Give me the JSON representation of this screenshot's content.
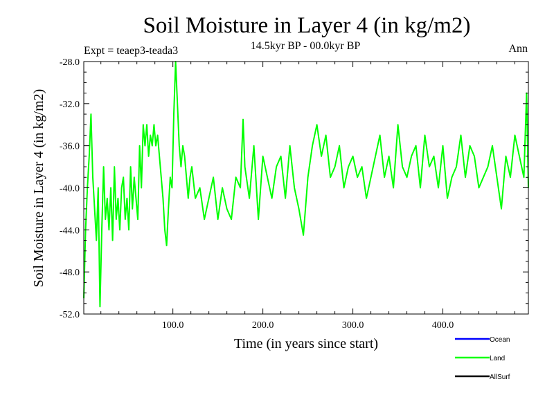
{
  "chart_data": {
    "type": "line",
    "title": "Soil Moisture in Layer 4 (in kg/m2)",
    "subtitle": "14.5kyr BP - 00.0kyr BP",
    "experiment_label": "Expt = teaep3-teada3",
    "season_label": "Ann",
    "xlabel": "Time (in years since start)",
    "ylabel": "Soil Moisture in Layer 4 (in kg/m2)",
    "xlim": [
      1,
      495
    ],
    "ylim": [
      -52,
      -28
    ],
    "x_ticks": [
      100,
      200,
      300,
      400
    ],
    "x_tick_labels": [
      "100.0",
      "200.0",
      "300.0",
      "400.0"
    ],
    "y_ticks": [
      -28,
      -32,
      -36,
      -40,
      -44,
      -48,
      -52
    ],
    "y_tick_labels": [
      "-28.0",
      "-32.0",
      "-36.0",
      "-40.0",
      "-44.0",
      "-48.0",
      "-52.0"
    ],
    "grid": false,
    "legend_position": "bottom-right",
    "legend": [
      {
        "name": "Ocean",
        "color": "#0000ff"
      },
      {
        "name": "Land",
        "color": "#00ff00"
      },
      {
        "name": "AllSurf",
        "color": "#000000"
      }
    ],
    "series": [
      {
        "name": "Land",
        "color": "#00ff00",
        "x": [
          1,
          3,
          5,
          7,
          9,
          11,
          13,
          15,
          17,
          19,
          21,
          23,
          25,
          27,
          29,
          31,
          33,
          35,
          37,
          39,
          41,
          43,
          45,
          47,
          49,
          51,
          53,
          55,
          57,
          59,
          61,
          63,
          65,
          67,
          69,
          71,
          73,
          75,
          77,
          79,
          81,
          83,
          85,
          87,
          89,
          91,
          93,
          95,
          97,
          99,
          101,
          103,
          105,
          107,
          109,
          111,
          113,
          115,
          117,
          119,
          121,
          125,
          130,
          135,
          140,
          145,
          150,
          155,
          160,
          165,
          170,
          175,
          178,
          180,
          185,
          190,
          195,
          200,
          205,
          210,
          215,
          220,
          225,
          230,
          235,
          240,
          245,
          250,
          255,
          260,
          265,
          270,
          275,
          280,
          285,
          290,
          295,
          300,
          305,
          310,
          315,
          320,
          325,
          330,
          335,
          340,
          345,
          350,
          355,
          360,
          365,
          370,
          375,
          380,
          385,
          390,
          395,
          400,
          405,
          410,
          415,
          420,
          425,
          430,
          435,
          440,
          445,
          450,
          455,
          460,
          465,
          470,
          475,
          480,
          485,
          490,
          493,
          495
        ],
        "values": [
          -50.5,
          -44,
          -40,
          -37,
          -33,
          -39,
          -42,
          -45,
          -40,
          -51.3,
          -44,
          -38,
          -43,
          -41,
          -44,
          -40,
          -45,
          -38,
          -43,
          -41,
          -44,
          -40,
          -39,
          -43,
          -41,
          -44,
          -38,
          -42,
          -39,
          -41,
          -43,
          -36,
          -40,
          -34,
          -36,
          -34,
          -37,
          -35,
          -36,
          -34,
          -36,
          -35,
          -37,
          -39,
          -41,
          -44,
          -45.5,
          -42,
          -39,
          -40,
          -33,
          -28,
          -32,
          -36,
          -38,
          -36,
          -37,
          -39,
          -41,
          -39,
          -38,
          -41,
          -40,
          -43,
          -41,
          -39,
          -43,
          -40,
          -42,
          -43,
          -39,
          -40,
          -33.5,
          -38,
          -41,
          -36,
          -43,
          -37,
          -39,
          -41,
          -38,
          -37,
          -41,
          -36,
          -40,
          -42,
          -44.5,
          -39,
          -36,
          -34,
          -37,
          -35,
          -39,
          -38,
          -36,
          -40,
          -38,
          -37,
          -39,
          -38,
          -41,
          -39,
          -37,
          -35,
          -39,
          -37,
          -40,
          -34,
          -38,
          -39,
          -37,
          -36,
          -40,
          -35,
          -38,
          -37,
          -40,
          -36,
          -41,
          -39,
          -38,
          -35,
          -39,
          -36,
          -37,
          -40,
          -39,
          -38,
          -36,
          -39,
          -42,
          -37,
          -39,
          -35,
          -37,
          -39,
          -31,
          -40
        ]
      }
    ]
  }
}
